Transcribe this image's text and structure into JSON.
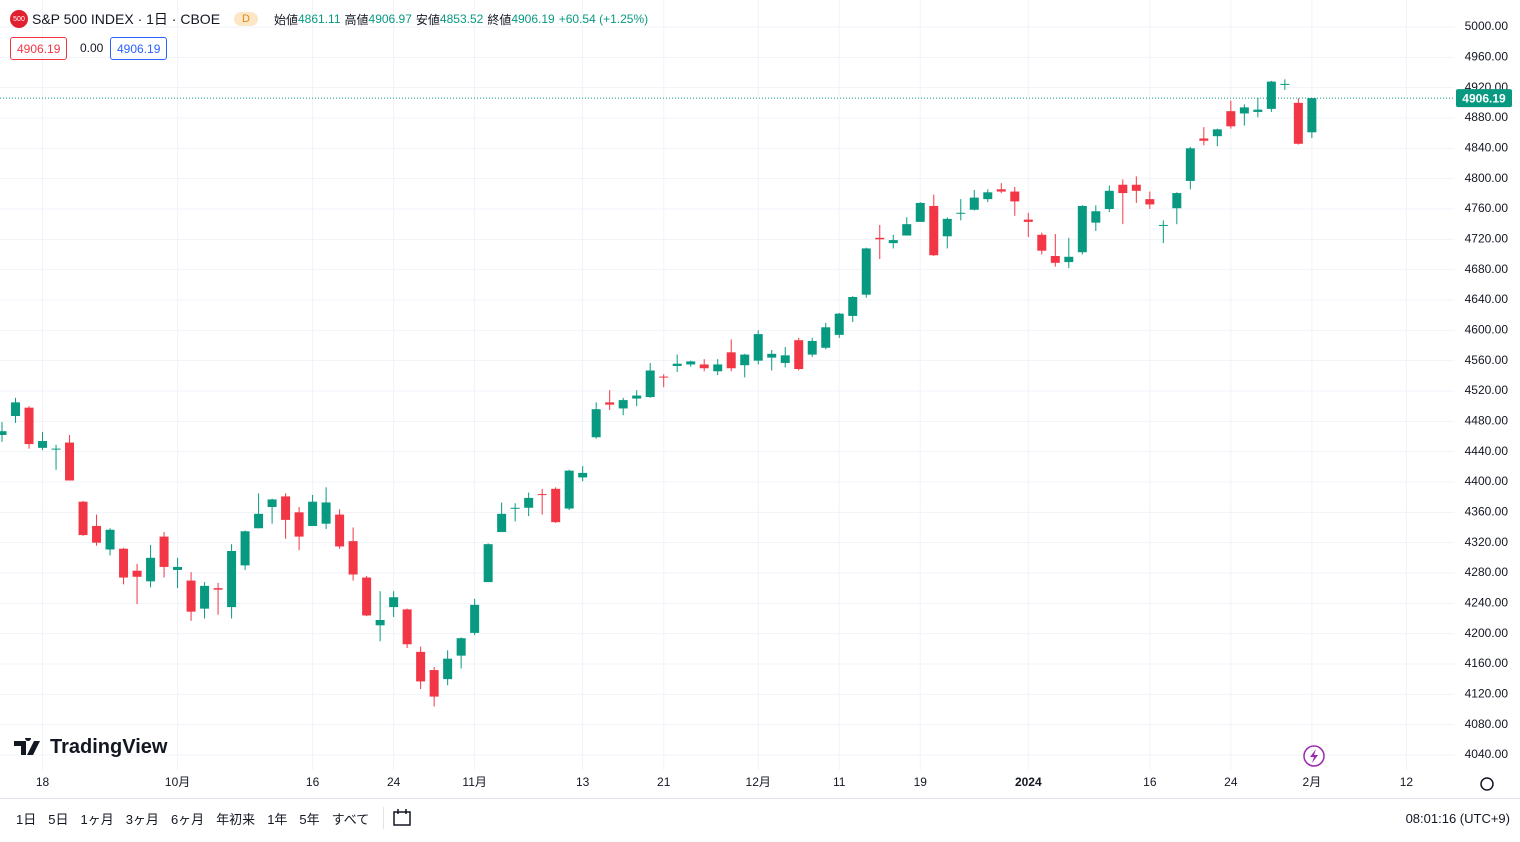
{
  "chart_data": {
    "type": "candlestick",
    "title": "S&P 500 INDEX · 1日 · CBOE",
    "symbol_badge": "500",
    "interval_badge": "D",
    "ohlc_labels": [
      "始値",
      "高値",
      "安値",
      "終値"
    ],
    "change": "+60.54 (+1.25%)",
    "spread": "0.00",
    "up_color": "#089981",
    "down_color": "#f23645",
    "grid": true,
    "open": [
      4462,
      4487,
      4498,
      4445,
      4443,
      4452,
      4374,
      4342,
      4311,
      4312,
      4283,
      4269,
      4328,
      4284,
      4270,
      4233,
      4260,
      4235,
      4290,
      4339,
      4367,
      4381,
      4360,
      4342,
      4345,
      4357,
      4322,
      4274,
      4211,
      4235,
      4232,
      4176,
      4152,
      4140,
      4171,
      4201,
      4268,
      4334,
      4365,
      4366,
      4384,
      4391,
      4365,
      4406,
      4459,
      4505,
      4497,
      4510,
      4512,
      4539,
      4553,
      4555,
      4555,
      4546,
      4571,
      4554,
      4560,
      4564,
      4557,
      4587,
      4568,
      4577,
      4594,
      4619,
      4647,
      4722,
      4715,
      4725,
      4743,
      4764,
      4724,
      4754,
      4759,
      4773,
      4786,
      4783,
      4746,
      4726,
      4698,
      4690,
      4703,
      4742,
      4760,
      4792,
      4792,
      4773,
      4739,
      4761,
      4797,
      4853,
      4856,
      4889,
      4886,
      4888,
      4892,
      4925,
      4900,
      4861.11
    ],
    "high": [
      4479,
      4511,
      4500,
      4466,
      4449,
      4462,
      4375,
      4357,
      4339,
      4313,
      4292,
      4317,
      4334,
      4300,
      4281,
      4268,
      4267,
      4318,
      4336,
      4385,
      4378,
      4385,
      4367,
      4383,
      4393,
      4364,
      4340,
      4276,
      4256,
      4256,
      4233,
      4183,
      4156,
      4178,
      4195,
      4246,
      4319,
      4373,
      4372,
      4386,
      4391,
      4393,
      4416,
      4421,
      4505,
      4521,
      4511,
      4521,
      4557,
      4542,
      4568,
      4560,
      4562,
      4562,
      4588,
      4569,
      4600,
      4574,
      4578,
      4590,
      4590,
      4610,
      4623,
      4645,
      4709,
      4739,
      4726,
      4749,
      4769,
      4779,
      4749,
      4773,
      4785,
      4786,
      4794,
      4789,
      4755,
      4729,
      4727,
      4722,
      4765,
      4765,
      4791,
      4799,
      4803,
      4783,
      4745,
      4782,
      4842,
      4868,
      4866,
      4903,
      4898,
      4907,
      4929,
      4931,
      4906,
      4906.97
    ],
    "low": [
      4453,
      4478,
      4444,
      4442,
      4416,
      4402,
      4329,
      4316,
      4303,
      4265,
      4239,
      4261,
      4274,
      4260,
      4217,
      4220,
      4225,
      4220,
      4284,
      4339,
      4345,
      4325,
      4310,
      4342,
      4338,
      4312,
      4270,
      4223,
      4190,
      4222,
      4181,
      4127,
      4104,
      4132,
      4154,
      4198,
      4268,
      4334,
      4348,
      4355,
      4357,
      4346,
      4363,
      4401,
      4457,
      4495,
      4488,
      4500,
      4511,
      4525,
      4545,
      4552,
      4546,
      4541,
      4546,
      4538,
      4555,
      4547,
      4551,
      4547,
      4565,
      4575,
      4590,
      4611,
      4643,
      4694,
      4708,
      4725,
      4743,
      4698,
      4708,
      4745,
      4758,
      4769,
      4781,
      4751,
      4723,
      4700,
      4684,
      4682,
      4700,
      4731,
      4756,
      4740,
      4768,
      4760,
      4715,
      4740,
      4786,
      4844,
      4843,
      4866,
      4870,
      4881,
      4888,
      4917,
      4845,
      4853.52
    ],
    "close": [
      4467,
      4505,
      4450,
      4454,
      4444,
      4402,
      4330,
      4320,
      4337,
      4274,
      4275,
      4300,
      4288,
      4288,
      4229,
      4263,
      4258,
      4309,
      4335,
      4358,
      4377,
      4350,
      4328,
      4374,
      4373,
      4315,
      4278,
      4224,
      4218,
      4248,
      4186,
      4137,
      4117,
      4167,
      4194,
      4238,
      4318,
      4358,
      4366,
      4379,
      4383,
      4347,
      4415,
      4412,
      4496,
      4502,
      4508,
      4514,
      4547,
      4538,
      4556,
      4559,
      4550,
      4555,
      4550,
      4568,
      4595,
      4569,
      4567,
      4549,
      4586,
      4604,
      4622,
      4644,
      4708,
      4720,
      4719,
      4740,
      4768,
      4699,
      4747,
      4755,
      4775,
      4782,
      4783,
      4770,
      4743,
      4705,
      4689,
      4697,
      4764,
      4757,
      4784,
      4781,
      4784,
      4766,
      4739,
      4781,
      4840,
      4850,
      4865,
      4869,
      4894,
      4891,
      4928,
      4925,
      4846,
      4906.19
    ],
    "xlim": [
      -0.15,
      107.6
    ],
    "xticks": [
      {
        "value": 3,
        "label": "18"
      },
      {
        "value": 13,
        "label": "10月"
      },
      {
        "value": 23,
        "label": "16"
      },
      {
        "value": 29,
        "label": "24"
      },
      {
        "value": 35,
        "label": "11月"
      },
      {
        "value": 43,
        "label": "13"
      },
      {
        "value": 49,
        "label": "21"
      },
      {
        "value": 56,
        "label": "12月"
      },
      {
        "value": 62,
        "label": "11"
      },
      {
        "value": 68,
        "label": "19"
      },
      {
        "value": 76,
        "label": "2024"
      },
      {
        "value": 85,
        "label": "16"
      },
      {
        "value": 91,
        "label": "24"
      },
      {
        "value": 97,
        "label": "2月"
      },
      {
        "value": 104,
        "label": "12"
      }
    ],
    "ylim": [
      4020.2,
      5035.6
    ],
    "yticks": [
      {
        "value": 4040,
        "label": "4040.00"
      },
      {
        "value": 4080,
        "label": "4080.00"
      },
      {
        "value": 4120,
        "label": "4120.00"
      },
      {
        "value": 4160,
        "label": "4160.00"
      },
      {
        "value": 4200,
        "label": "4200.00"
      },
      {
        "value": 4240,
        "label": "4240.00"
      },
      {
        "value": 4280,
        "label": "4280.00"
      },
      {
        "value": 4320,
        "label": "4320.00"
      },
      {
        "value": 4360,
        "label": "4360.00"
      },
      {
        "value": 4400,
        "label": "4400.00"
      },
      {
        "value": 4440,
        "label": "4440.00"
      },
      {
        "value": 4480,
        "label": "4480.00"
      },
      {
        "value": 4520,
        "label": "4520.00"
      },
      {
        "value": 4560,
        "label": "4560.00"
      },
      {
        "value": 4600,
        "label": "4600.00"
      },
      {
        "value": 4640,
        "label": "4640.00"
      },
      {
        "value": 4680,
        "label": "4680.00"
      },
      {
        "value": 4720,
        "label": "4720.00"
      },
      {
        "value": 4760,
        "label": "4760.00"
      },
      {
        "value": 4800,
        "label": "4800.00"
      },
      {
        "value": 4840,
        "label": "4840.00"
      },
      {
        "value": 4880,
        "label": "4880.00"
      },
      {
        "value": 4920,
        "label": "4920.00"
      },
      {
        "value": 4960,
        "label": "4960.00"
      },
      {
        "value": 5000,
        "label": "5000.00"
      }
    ]
  },
  "logo": "TradingView",
  "range_buttons": [
    "1日",
    "5日",
    "1ヶ月",
    "3ヶ月",
    "6ヶ月",
    "年初来",
    "1年",
    "5年",
    "すべて"
  ],
  "clock": "08:01:16 (UTC+9)"
}
